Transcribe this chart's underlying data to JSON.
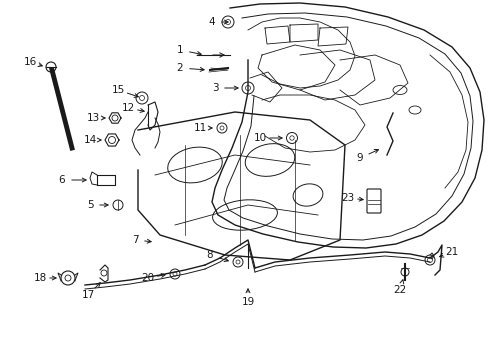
{
  "background_color": "#ffffff",
  "line_color": "#1a1a1a",
  "text_color": "#1a1a1a",
  "fig_width": 4.89,
  "fig_height": 3.6,
  "dpi": 100
}
